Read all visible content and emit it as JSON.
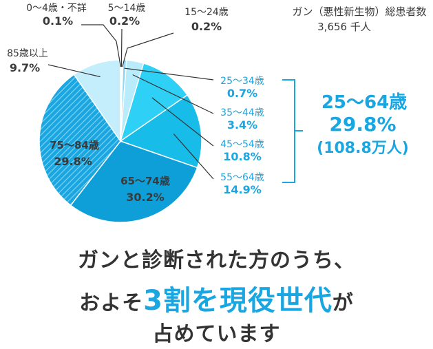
{
  "chart_data": {
    "type": "pie",
    "title": "ガン（悪性新生物）総患者数",
    "subtitle": "3,656 千人",
    "slices": [
      {
        "label": "0～4歳・不詳",
        "value": 0.1,
        "value_label": "0.1%",
        "color": "#1a4e8c"
      },
      {
        "label": "5～14歳",
        "value": 0.2,
        "value_label": "0.2%",
        "color": "#1f6fb0"
      },
      {
        "label": "15～24歳",
        "value": 0.2,
        "value_label": "0.2%",
        "color": "#3b8fd0"
      },
      {
        "label": "25～34歳",
        "value": 0.7,
        "value_label": "0.7%",
        "color": "#8fd8f5"
      },
      {
        "label": "35～44歳",
        "value": 3.4,
        "value_label": "3.4%",
        "color": "#b9ecfb"
      },
      {
        "label": "45～54歳",
        "value": 10.8,
        "value_label": "10.8%",
        "color": "#2fd0f5"
      },
      {
        "label": "55～64歳",
        "value": 14.9,
        "value_label": "14.9%",
        "color": "#18bce9"
      },
      {
        "label": "65～74歳",
        "value": 30.2,
        "value_label": "30.2%",
        "color": "#0f9fd8"
      },
      {
        "label": "75～84歳",
        "value": 29.8,
        "value_label": "29.8%",
        "color": "#1aa6e0",
        "pattern": "diagonal-stripes"
      },
      {
        "label": "85歳以上",
        "value": 9.7,
        "value_label": "9.7%",
        "color": "#c4eefc"
      }
    ],
    "group_summary": {
      "label": "25～64歳",
      "value_label": "29.8%",
      "note": "(108.8万人)"
    }
  },
  "headline": {
    "line1": "ガンと診断された方のうち、",
    "line2_pre": "およそ",
    "line2_highlight": "3割を現役世代",
    "line2_post": "が",
    "line3": "占めています"
  },
  "colors": {
    "accent": "#1aa6e0",
    "text": "#333333",
    "stroke": "#ffffff"
  }
}
